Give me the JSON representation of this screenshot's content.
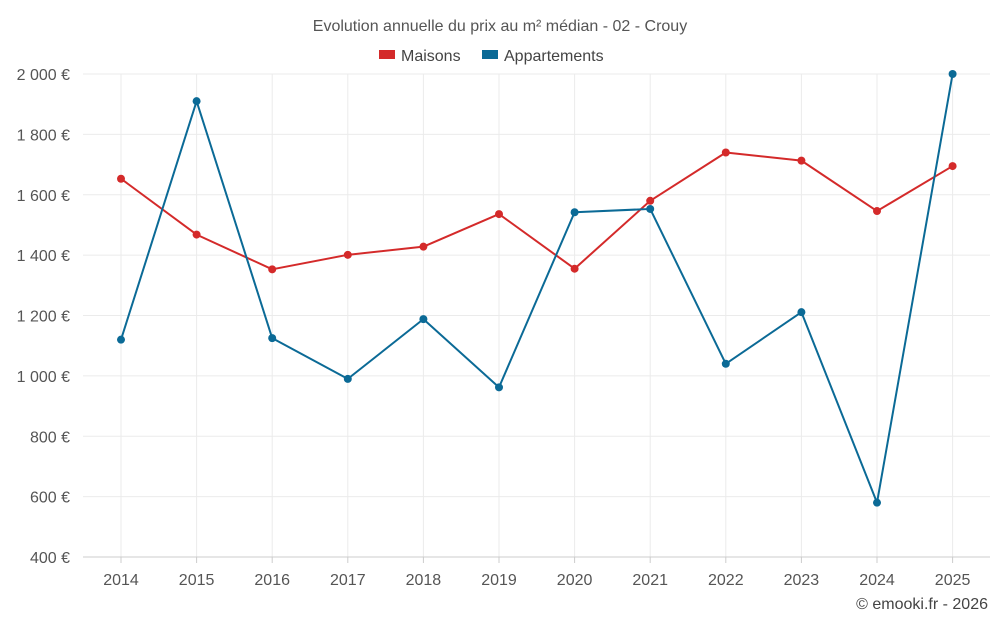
{
  "chart_data": {
    "type": "line",
    "title": "Evolution annuelle du prix au m² médian - 02 - Crouy",
    "categories": [
      "2014",
      "2015",
      "2016",
      "2017",
      "2018",
      "2019",
      "2020",
      "2021",
      "2022",
      "2023",
      "2024",
      "2025"
    ],
    "series": [
      {
        "name": "Maisons",
        "color": "#d42a2a",
        "values": [
          1653,
          1468,
          1353,
          1401,
          1428,
          1536,
          1355,
          1580,
          1740,
          1713,
          1546,
          1695
        ]
      },
      {
        "name": "Appartements",
        "color": "#0b6a96",
        "values": [
          1120,
          1910,
          1125,
          990,
          1188,
          962,
          1542,
          1553,
          1040,
          1211,
          580,
          2000
        ]
      }
    ],
    "ylim": [
      400,
      2000
    ],
    "yticks": [
      400,
      600,
      800,
      1000,
      1200,
      1400,
      1600,
      1800,
      2000
    ],
    "ytick_labels": [
      "400 €",
      "600 €",
      "800 €",
      "1 000 €",
      "1 200 €",
      "1 400 €",
      "1 600 €",
      "1 800 €",
      "2 000 €"
    ],
    "xlabel": "",
    "ylabel": "",
    "grid": true,
    "legend_position": "top-center"
  },
  "credit": "© emooki.fr - 2026"
}
